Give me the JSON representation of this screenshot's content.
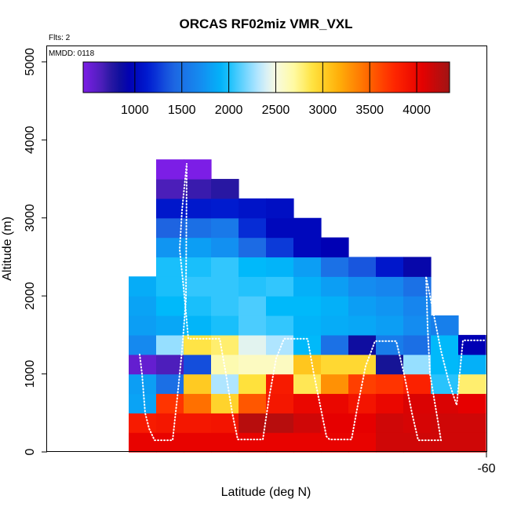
{
  "chart_data": {
    "type": "heatmap",
    "title": "ORCAS RF02miz VMR_VXL",
    "note_flights": "Flts: 2",
    "note_date": "MMDD: 0118",
    "xlabel": "Latitude (deg N)",
    "ylabel": "Altitude (m)",
    "x_tick_labels": [
      "-60"
    ],
    "y_ticks": [
      0,
      1000,
      2000,
      3000,
      4000,
      5000
    ],
    "y_tick_labels": [
      "0",
      "1000",
      "2000",
      "3000",
      "4000",
      "5000"
    ],
    "ylim": [
      0,
      5200
    ],
    "altitude_bin_bottoms_m": [
      0,
      250,
      500,
      750,
      1000,
      1250,
      1500,
      1750,
      2000,
      2250,
      2500,
      2750,
      3000,
      3250,
      3500
    ],
    "altitude_bin_size_m": 250,
    "column_count": 13,
    "colorbar": {
      "range": [
        450,
        4350
      ],
      "ticks": [
        1000,
        1500,
        2000,
        2500,
        3000,
        3500,
        4000
      ],
      "tick_labels": [
        "1000",
        "1500",
        "2000",
        "2500",
        "3000",
        "3500",
        "4000"
      ]
    },
    "columns": [
      {
        "index": 1,
        "values": [
          4030,
          3850,
          1830,
          1800,
          550,
          1680,
          1800,
          1830,
          1880,
          null,
          null,
          null,
          null,
          null,
          null
        ]
      },
      {
        "index": 2,
        "values": [
          4030,
          3880,
          3700,
          1480,
          640,
          2250,
          1850,
          1950,
          2000,
          2000,
          1750,
          1400,
          1100,
          650,
          400
        ]
      },
      {
        "index": 3,
        "values": [
          4030,
          3880,
          3440,
          3030,
          1320,
          2880,
          1930,
          2000,
          2050,
          2000,
          1800,
          1480,
          1110,
          700,
          400
        ]
      },
      {
        "index": 4,
        "values": [
          4030,
          3900,
          2980,
          2300,
          2650,
          2800,
          2000,
          2050,
          2050,
          2050,
          1720,
          1560,
          1130,
          750,
          null
        ]
      },
      {
        "index": 5,
        "values": [
          4030,
          4250,
          3550,
          2900,
          2600,
          2430,
          2100,
          2100,
          2020,
          1950,
          1450,
          1200,
          1080,
          null,
          null
        ]
      },
      {
        "index": 6,
        "values": [
          4030,
          4250,
          3880,
          3850,
          2600,
          2300,
          2050,
          1950,
          2050,
          1920,
          1250,
          1000,
          1050,
          null,
          null
        ]
      },
      {
        "index": 7,
        "values": [
          4030,
          4150,
          4000,
          2850,
          3050,
          1950,
          1920,
          1950,
          1900,
          1800,
          1000,
          1000,
          null,
          null,
          null
        ]
      },
      {
        "index": 8,
        "values": [
          4030,
          4050,
          4000,
          3300,
          2950,
          1500,
          1880,
          1900,
          1800,
          1500,
          950,
          null,
          null,
          null,
          null
        ]
      },
      {
        "index": 9,
        "values": [
          4030,
          4050,
          3900,
          3650,
          2950,
          850,
          1850,
          1800,
          1700,
          1350,
          null,
          null,
          null,
          null,
          null
        ]
      },
      {
        "index": 10,
        "values": [
          4150,
          4150,
          4000,
          3700,
          800,
          1580,
          1800,
          1750,
          1650,
          1100,
          null,
          null,
          null,
          null,
          null
        ]
      },
      {
        "index": 11,
        "values": [
          4150,
          4120,
          4100,
          3800,
          2250,
          1480,
          1700,
          1650,
          1500,
          900,
          null,
          null,
          null,
          null,
          null
        ]
      },
      {
        "index": 12,
        "values": [
          4150,
          4150,
          4100,
          2030,
          1950,
          1950,
          1600,
          null,
          null,
          null,
          null,
          null,
          null,
          null,
          null
        ]
      },
      {
        "index": 13,
        "values": [
          4150,
          4150,
          4050,
          2800,
          1900,
          950,
          null,
          null,
          null,
          null,
          null,
          null,
          null,
          null,
          null
        ]
      }
    ],
    "flight_track_style": "white dotted line"
  }
}
